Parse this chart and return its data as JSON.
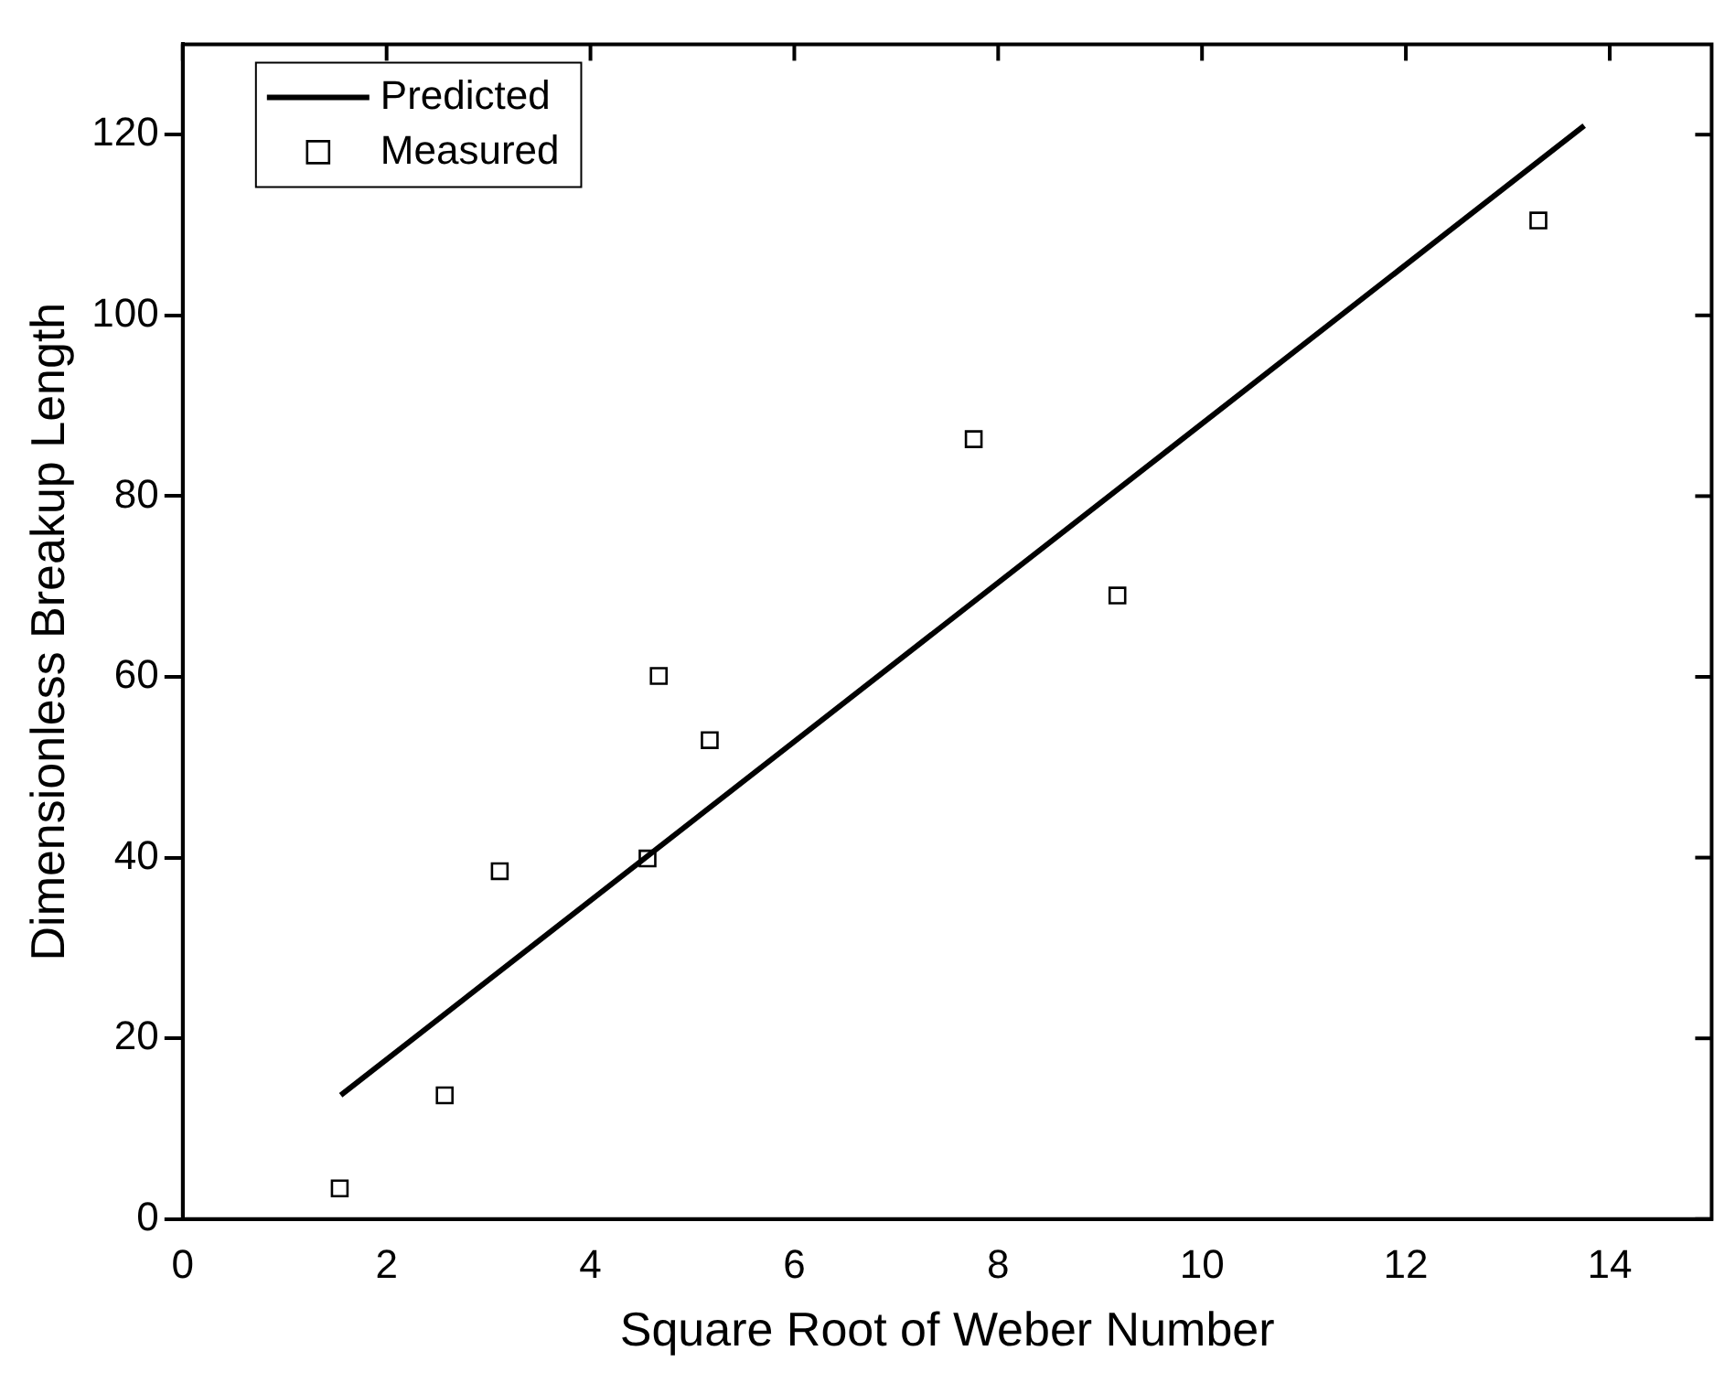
{
  "chart_data": {
    "type": "scatter",
    "xlabel": "Square Root of Weber Number",
    "ylabel": "Dimensionless Breakup Length",
    "xlim": [
      0,
      15
    ],
    "xticks": [
      0,
      2,
      4,
      6,
      8,
      10,
      12,
      14
    ],
    "ylim": [
      0,
      130
    ],
    "yticks": [
      0,
      20,
      40,
      60,
      80,
      100,
      120
    ],
    "grid": false,
    "legend": "top left",
    "series": [
      {
        "name": "Predicted",
        "type": "line",
        "color": "#000000",
        "marker": "none",
        "line_style": "solid",
        "x": [
          1.55,
          13.75
        ],
        "values": [
          13.7,
          121
        ]
      },
      {
        "name": "Measured",
        "color": "#000000",
        "marker": "square",
        "x": [
          1.54,
          2.57,
          3.11,
          4.56,
          4.67,
          5.17,
          7.76,
          9.17,
          13.3
        ],
        "values": [
          3.4,
          13.7,
          38.5,
          39.9,
          60.1,
          53,
          86.3,
          69,
          110.5
        ]
      }
    ]
  }
}
